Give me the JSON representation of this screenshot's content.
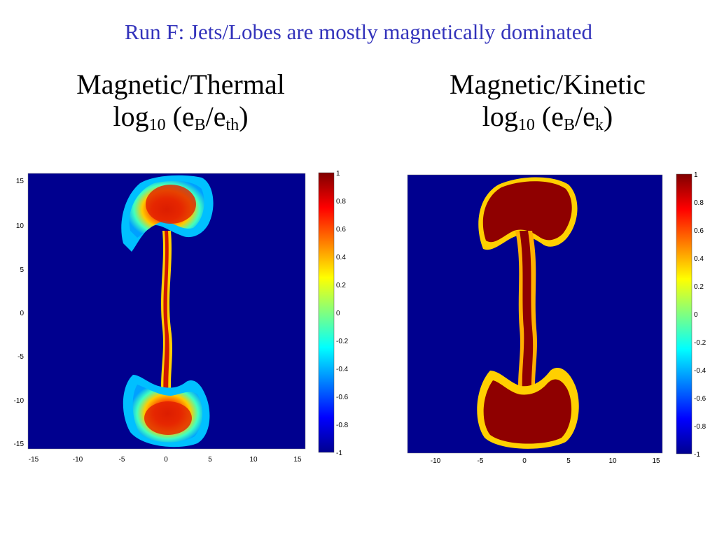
{
  "title": "Run F: Jets/Lobes are mostly magnetically dominated",
  "panels": [
    {
      "heading": "Magnetic/Thermal",
      "formula": {
        "prefix": "log",
        "sub1": "10",
        "mid1": " (e",
        "sub2": "B",
        "mid2": "/e",
        "sub3": "th",
        "suffix": ")"
      },
      "x_ticks": [
        "-15",
        "-10",
        "-5",
        "0",
        "5",
        "10",
        "15"
      ],
      "y_ticks": [
        "15",
        "10",
        "5",
        "0",
        "-5",
        "-10",
        "-15"
      ],
      "colorbar_ticks": [
        "1",
        "0.8",
        "0.6",
        "0.4",
        "0.2",
        "0",
        "-0.2",
        "-0.4",
        "-0.6",
        "-0.8",
        "-1"
      ]
    },
    {
      "heading": "Magnetic/Kinetic",
      "formula": {
        "prefix": "log",
        "sub1": "10",
        "mid1": " (e",
        "sub2": "B",
        "mid2": "/e",
        "sub3": "k",
        "suffix": ")"
      },
      "x_ticks": [
        "-10",
        "-5",
        "0",
        "5",
        "10",
        "15"
      ],
      "y_ticks": [],
      "colorbar_ticks": [
        "1",
        "0.8",
        "0.6",
        "0.4",
        "0.2",
        "0",
        "-0.2",
        "-0.4",
        "-0.6",
        "-0.8",
        "-1"
      ]
    }
  ],
  "colors": {
    "title": "#3333bb",
    "background_field": "#00008f",
    "colormap": "jet"
  }
}
